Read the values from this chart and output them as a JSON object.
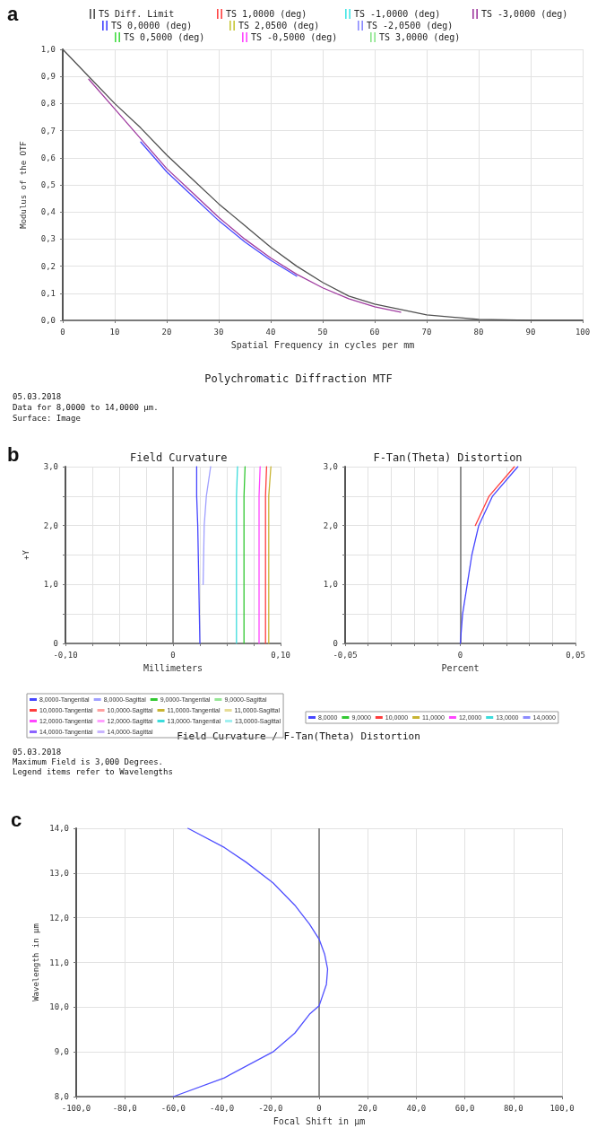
{
  "chart_data": [
    {
      "type": "line",
      "title": "Polychromatic Diffraction MTF",
      "xlabel": "Spatial Frequency in cycles per mm",
      "ylabel": "Modulus of the OTF",
      "annotations": [
        "a",
        "05.03.2018",
        "Data for 8,0000 to 14,0000 µm.",
        "Surface: Image"
      ],
      "legend": "top",
      "grid": true,
      "marker": "none",
      "line_style": "solid",
      "xlim": [
        0,
        100
      ],
      "xticks": [
        0,
        10,
        20,
        30,
        40,
        50,
        60,
        70,
        80,
        90,
        100
      ],
      "ylim": [
        0,
        1
      ],
      "yticks": [
        {
          "value": 0,
          "label": "0,0"
        },
        {
          "value": 0.1,
          "label": "0,1"
        },
        {
          "value": 0.2,
          "label": "0,2"
        },
        {
          "value": 0.3,
          "label": "0,3"
        },
        {
          "value": 0.4,
          "label": "0,4"
        },
        {
          "value": 0.5,
          "label": "0,5"
        },
        {
          "value": 0.6,
          "label": "0,6"
        },
        {
          "value": 0.7,
          "label": "0,7"
        },
        {
          "value": 0.8,
          "label": "0,8"
        },
        {
          "value": 0.9,
          "label": "0,9"
        },
        {
          "value": 1,
          "label": "1,0"
        }
      ],
      "series": [
        {
          "name": "TS Diff. Limit",
          "color": "#505050",
          "x": [
            0,
            5,
            10,
            15,
            20,
            25,
            30,
            35,
            40,
            45,
            50,
            55,
            60,
            65,
            70,
            80,
            90,
            100
          ],
          "values": [
            1,
            0.9,
            0.8,
            0.71,
            0.61,
            0.52,
            0.43,
            0.35,
            0.27,
            0.2,
            0.14,
            0.09,
            0.06,
            0.04,
            0.02,
            0.004,
            0,
            0
          ]
        },
        {
          "name": "TS 0,0000 (deg)",
          "color": "#4646ff",
          "x": [
            15,
            20,
            25,
            30,
            35,
            40,
            45
          ],
          "values": [
            0.658,
            0.548,
            0.458,
            0.368,
            0.29,
            0.222,
            0.163
          ]
        },
        {
          "name": "TS 0,5000 (deg)",
          "color": "#46dc46"
        },
        {
          "name": "TS 1,0000 (deg)",
          "color": "#ff4646"
        },
        {
          "name": "TS 2,0500 (deg)",
          "color": "#c8c83c"
        },
        {
          "name": "TS -0,5000 (deg)",
          "color": "#ff46ff"
        },
        {
          "name": "TS -1,0000 (deg)",
          "color": "#46e6e6"
        },
        {
          "name": "TS -2,0500 (deg)",
          "color": "#8c8cff"
        },
        {
          "name": "TS 3,0000 (deg)",
          "color": "#8ce68c"
        },
        {
          "name": "TS -3,0000 (deg)",
          "color": "#a03ca0",
          "x": [
            5,
            10,
            15,
            20,
            25,
            30,
            35,
            40,
            45,
            50,
            55,
            60,
            65
          ],
          "values": [
            0.89,
            0.78,
            0.67,
            0.56,
            0.47,
            0.38,
            0.3,
            0.23,
            0.17,
            0.12,
            0.08,
            0.05,
            0.03
          ]
        }
      ]
    },
    {
      "type": "line",
      "title": "Field Curvature",
      "xlabel": "Millimeters",
      "ylabel": "+Y",
      "annotations": [
        "b",
        "Field Curvature / F-Tan(Theta) Distortion",
        "05.03.2018",
        "Maximum Field is 3,000 Degrees.",
        "Legend items refer to Wavelengths"
      ],
      "legend": "bottom",
      "grid": true,
      "marker": "none",
      "line_style": "solid",
      "xlim": [
        -0.1,
        0.1
      ],
      "xticks": [
        {
          "value": -0.1,
          "label": "-0,10"
        },
        {
          "value": -0.075,
          "label": null
        },
        {
          "value": -0.05,
          "label": null
        },
        {
          "value": -0.025,
          "label": null
        },
        0,
        {
          "value": 0.025,
          "label": null
        },
        {
          "value": 0.05,
          "label": null
        },
        {
          "value": 0.075,
          "label": null
        },
        {
          "value": 0.1,
          "label": "0,10"
        }
      ],
      "ylim": [
        0,
        3
      ],
      "yticks": [
        0,
        {
          "value": 0.5,
          "label": null
        },
        {
          "value": 1,
          "label": "1,0"
        },
        {
          "value": 1.5,
          "label": null
        },
        {
          "value": 2,
          "label": "2,0"
        },
        {
          "value": 2.5,
          "label": null
        },
        {
          "value": 3,
          "label": "3,0"
        }
      ],
      "ref_lines": [
        {
          "axis": "x",
          "value": 0,
          "color": "#707070"
        }
      ],
      "series": [
        {
          "name": "8,0000-Tangential",
          "color": "#4646ff",
          "x": [
            0.025,
            0.024,
            0.023,
            0.022,
            0.022
          ],
          "values": [
            0,
            1,
            2,
            2.5,
            3
          ]
        },
        {
          "name": "8,0000-Sagittal",
          "color": "#a0a0ff",
          "x": [
            0.028,
            0.029,
            0.031,
            0.035
          ],
          "values": [
            1,
            2,
            2.5,
            3
          ]
        },
        {
          "name": "9,0000-Tangential",
          "color": "#32c832",
          "x": [
            0.066,
            0.066,
            0.066,
            0.066,
            0.067
          ],
          "values": [
            0,
            1,
            2,
            2.5,
            3
          ]
        },
        {
          "name": "9,0000-Sagittal",
          "color": "#96e696"
        },
        {
          "name": "10,0000-Tangential",
          "color": "#ff3c3c",
          "x": [
            0.086,
            0.086,
            0.086,
            0.086,
            0.087
          ],
          "values": [
            0,
            1,
            2,
            2.5,
            3
          ]
        },
        {
          "name": "10,0000-Sagittal",
          "color": "#ffa0a0"
        },
        {
          "name": "11,0000-Tangential",
          "color": "#c8b432",
          "x": [
            0.089,
            0.089,
            0.089,
            0.089,
            0.091
          ],
          "values": [
            0,
            1,
            2,
            2.5,
            3
          ]
        },
        {
          "name": "11,0000-Sagittal",
          "color": "#e6dc96"
        },
        {
          "name": "12,0000-Tangential",
          "color": "#ff46ff",
          "x": [
            0.08,
            0.08,
            0.08,
            0.08,
            0.081
          ],
          "values": [
            0,
            1,
            2,
            2.5,
            3
          ]
        },
        {
          "name": "12,0000-Sagittal",
          "color": "#ffa0ff"
        },
        {
          "name": "13,0000-Tangential",
          "color": "#3cdcdc",
          "x": [
            0.059,
            0.059,
            0.059,
            0.059,
            0.06
          ],
          "values": [
            0,
            1,
            2,
            2.5,
            3
          ]
        },
        {
          "name": "13,0000-Sagittal",
          "color": "#a0f0f0"
        },
        {
          "name": "14,0000-Tangential",
          "color": "#8c64ff"
        },
        {
          "name": "14,0000-Sagittal",
          "color": "#c8b4ff"
        }
      ]
    },
    {
      "type": "line",
      "title": "F-Tan(Theta) Distortion",
      "xlabel": "Percent",
      "legend": "bottom",
      "grid": true,
      "marker": "none",
      "line_style": "solid",
      "xlim": [
        -0.05,
        0.05
      ],
      "xticks": [
        {
          "value": -0.05,
          "label": "-0,05"
        },
        {
          "value": -0.04,
          "label": null
        },
        {
          "value": -0.03,
          "label": null
        },
        {
          "value": -0.02,
          "label": null
        },
        {
          "value": -0.01,
          "label": null
        },
        0,
        {
          "value": 0.01,
          "label": null
        },
        {
          "value": 0.02,
          "label": null
        },
        {
          "value": 0.03,
          "label": null
        },
        {
          "value": 0.04,
          "label": null
        },
        {
          "value": 0.05,
          "label": "0,05"
        }
      ],
      "ylim": [
        0,
        3
      ],
      "yticks": [
        0,
        {
          "value": 0.5,
          "label": null
        },
        {
          "value": 1,
          "label": "1,0"
        },
        {
          "value": 1.5,
          "label": null
        },
        {
          "value": 2,
          "label": "2,0"
        },
        {
          "value": 2.5,
          "label": null
        },
        {
          "value": 3,
          "label": "3,0"
        }
      ],
      "ref_lines": [
        {
          "axis": "x",
          "value": 0,
          "color": "#707070"
        }
      ],
      "series": [
        {
          "name": "8,0000",
          "color": "#4646ff",
          "x": [
            0,
            0.001,
            0.003,
            0.005,
            0.008,
            0.014,
            0.025
          ],
          "values": [
            0,
            0.5,
            1,
            1.5,
            2,
            2.5,
            3
          ]
        },
        {
          "name": "9,0000",
          "color": "#32c832"
        },
        {
          "name": "10,0000",
          "color": "#ff3c3c",
          "x": [
            0.0065,
            0.0125,
            0.0235
          ],
          "values": [
            2,
            2.5,
            3
          ]
        },
        {
          "name": "11,0000",
          "color": "#c8b432"
        },
        {
          "name": "12,0000",
          "color": "#ff46ff"
        },
        {
          "name": "13,0000",
          "color": "#3cdcdc"
        },
        {
          "name": "14,0000",
          "color": "#8c8cff"
        }
      ]
    },
    {
      "type": "line",
      "xlabel": "Focal Shift in µm",
      "ylabel": "Wavelength in µm",
      "annotations": [
        "c"
      ],
      "grid": true,
      "marker": "none",
      "line_style": "solid",
      "xlim": [
        -100,
        100
      ],
      "xticks": [
        {
          "value": -100,
          "label": "-100,0"
        },
        {
          "value": -80,
          "label": "-80,0"
        },
        {
          "value": -60,
          "label": "-60,0"
        },
        {
          "value": -40,
          "label": "-40,0"
        },
        {
          "value": -20,
          "label": "-20,0"
        },
        0,
        {
          "value": 20,
          "label": "20,0"
        },
        {
          "value": 40,
          "label": "40,0"
        },
        {
          "value": 60,
          "label": "60,0"
        },
        {
          "value": 80,
          "label": "80,0"
        },
        {
          "value": 100,
          "label": "100,0"
        }
      ],
      "ylim": [
        8,
        14
      ],
      "yticks": [
        {
          "value": 8,
          "label": "8,0"
        },
        {
          "value": 9,
          "label": "9,0"
        },
        {
          "value": 10,
          "label": "10,0"
        },
        {
          "value": 11,
          "label": "11,0"
        },
        {
          "value": 12,
          "label": "12,0"
        },
        {
          "value": 13,
          "label": "13,0"
        },
        {
          "value": 14,
          "label": "14,0"
        }
      ],
      "ref_lines": [
        {
          "axis": "x",
          "value": 0,
          "color": "#707070"
        }
      ],
      "series": [
        {
          "color": "#5050ff",
          "x": [
            -60,
            -39,
            -19,
            -10,
            -4,
            0,
            3,
            3.5,
            2.3,
            0,
            -4,
            -10,
            -19,
            -30,
            -39,
            -54
          ],
          "values": [
            8,
            8.42,
            9,
            9.42,
            9.84,
            10.03,
            10.51,
            10.85,
            11.18,
            11.52,
            11.86,
            12.28,
            12.78,
            13.24,
            13.57,
            14
          ]
        }
      ]
    }
  ]
}
